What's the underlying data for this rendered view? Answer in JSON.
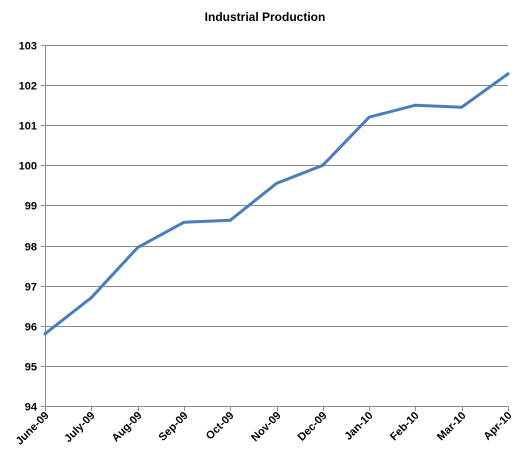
{
  "chart_data": {
    "type": "line",
    "title": "Industrial Production",
    "xlabel": "",
    "ylabel": "",
    "categories": [
      "June-09",
      "July-09",
      "Aug-09",
      "Sep-09",
      "Oct-09",
      "Nov-09",
      "Dec-09",
      "Jan-10",
      "Feb-10",
      "Mar-10",
      "Apr-10"
    ],
    "series": [
      {
        "values": [
          95.8,
          96.7,
          97.95,
          98.58,
          98.63,
          99.55,
          100.0,
          101.2,
          101.5,
          101.45,
          102.28
        ]
      }
    ],
    "ylim": [
      94,
      103
    ],
    "yticks": [
      94,
      95,
      96,
      97,
      98,
      99,
      100,
      101,
      102,
      103
    ],
    "grid": true,
    "legend": "none",
    "line_color": "#4a7ebb"
  }
}
